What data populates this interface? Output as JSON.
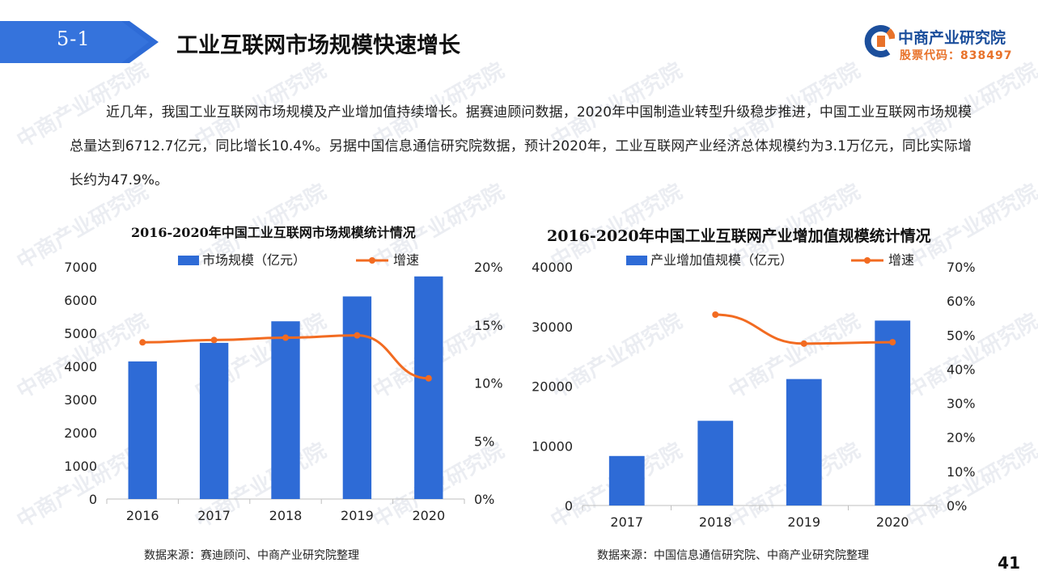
{
  "section_number": "5-1",
  "title": "工业互联网市场规模快速增长",
  "logo": {
    "name": "中商产业研究院",
    "stock_code": "股票代码：838497"
  },
  "paragraph": "近几年，我国工业互联网市场规模及产业增加值持续增长。据赛迪顾问数据，2020年中国制造业转型升级稳步推进，中国工业互联网市场规模总量达到6712.7亿元，同比增长10.4%。另据中国信息通信研究院数据，预计2020年，工业互联网产业经济总体规模约为3.1万亿元，同比实际增长约为47.9%。",
  "watermark": "中商产业研究院",
  "colors": {
    "bar": "#2e6bd6",
    "line": "#f26b21",
    "tag": "#2e6bd6"
  },
  "chart_data": [
    {
      "type": "bar",
      "title": "2016-2020年中国工业互联网市场规模统计情况",
      "categories": [
        "2016",
        "2017",
        "2018",
        "2019",
        "2020"
      ],
      "series": [
        {
          "name": "市场规模（亿元）",
          "type": "bar",
          "axis": "left",
          "values": [
            4150,
            4710,
            5360,
            6110,
            6713
          ]
        },
        {
          "name": "增速",
          "type": "line",
          "axis": "right",
          "values": [
            13.5,
            13.7,
            13.9,
            14.1,
            10.4
          ]
        }
      ],
      "ylim": [
        0,
        7000
      ],
      "yticks": [
        "0",
        "1000",
        "2000",
        "3000",
        "4000",
        "5000",
        "6000",
        "7000"
      ],
      "y2lim": [
        0,
        20
      ],
      "y2ticks": [
        "0%",
        "5%",
        "10%",
        "15%",
        "20%"
      ],
      "legend": "top",
      "source": "数据来源：赛迪顾问、中商产业研究院整理"
    },
    {
      "type": "bar",
      "title": "2016-2020年中国工业互联网产业增加值规模统计情况",
      "categories": [
        "2017",
        "2018",
        "2019",
        "2020"
      ],
      "series": [
        {
          "name": "产业增加值规模（亿元）",
          "type": "bar",
          "axis": "left",
          "values": [
            8300,
            14200,
            21200,
            31000
          ]
        },
        {
          "name": "增速",
          "type": "line",
          "axis": "right",
          "values": [
            null,
            56,
            47.5,
            47.9
          ]
        }
      ],
      "ylim": [
        0,
        40000
      ],
      "yticks": [
        "0",
        "10000",
        "20000",
        "30000",
        "40000"
      ],
      "y2lim": [
        0,
        70
      ],
      "y2ticks": [
        "0%",
        "10%",
        "20%",
        "30%",
        "40%",
        "50%",
        "60%",
        "70%"
      ],
      "legend": "top",
      "source": "数据来源：中国信息通信研究院、中商产业研究院整理"
    }
  ],
  "page_number": "41"
}
